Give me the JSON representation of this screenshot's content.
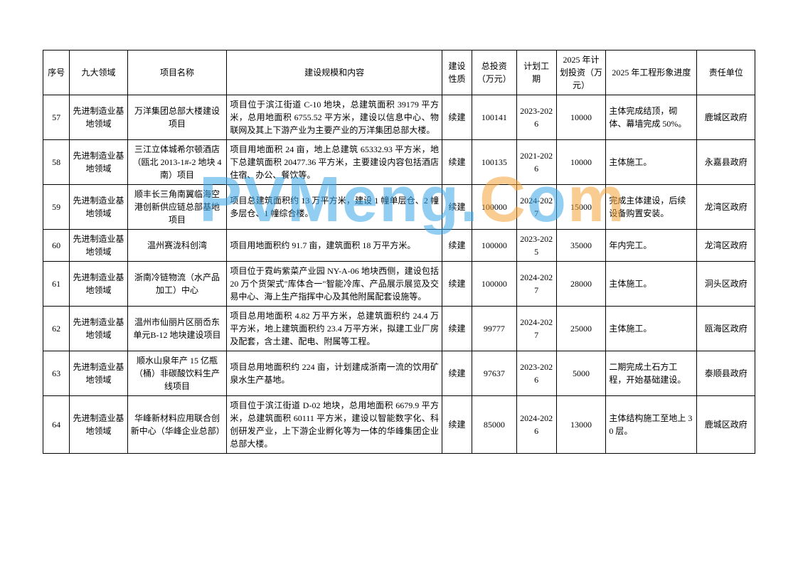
{
  "watermark": {
    "p": "PVMeng.",
    "c": "C",
    "o": "o",
    "m": "m"
  },
  "headers": {
    "seq": "序号",
    "domain": "九大领域",
    "name": "项目名称",
    "desc": "建设规模和内容",
    "prop": "建设性质",
    "inv": "总投资（万元）",
    "period": "计划工期",
    "plan": "2025 年计划投资（万元）",
    "prog": "2025 年工程形象进度",
    "resp": "责任单位"
  },
  "rows": [
    {
      "seq": "57",
      "domain": "先进制造业基地领域",
      "name": "万洋集团总部大楼建设项目",
      "desc": "项目位于滨江街道 C-10 地块，总建筑面积 39179 平方米，总用地面积 6755.52 平方米，建设以信息中心、物联网及其上下游产业为主要产业的万洋集团总部大楼。",
      "prop": "续建",
      "inv": "100141",
      "period": "2023-2026",
      "plan": "10000",
      "prog": "主体完成结顶，砌体、幕墙完成 50%。",
      "resp": "鹿城区政府"
    },
    {
      "seq": "58",
      "domain": "先进制造业基地领域",
      "name": "三江立体城希尔顿酒店（瓯北 2013-1#-2 地块 4 南）项目",
      "desc": "项目用地面积 24 亩，地上总建筑 65332.93 平方米，地下总建筑面积 20477.36 平方米，主要建设内容包括酒店住宿、办公、餐饮等。",
      "prop": "续建",
      "inv": "100135",
      "period": "2021-2026",
      "plan": "10000",
      "prog": "主体施工。",
      "resp": "永嘉县政府"
    },
    {
      "seq": "59",
      "domain": "先进制造业基地领域",
      "name": "顺丰长三角南翼临海空港创新供应链总部基地项目",
      "desc": "项目总建筑面积约 13 万平方米，建设 1 幢单层仓、2 幢多层仓、1 幢综合楼。",
      "prop": "续建",
      "inv": "100000",
      "period": "2024-2027",
      "plan": "15000",
      "prog": "完成主体建设，后续设备购置安装。",
      "resp": "龙湾区政府"
    },
    {
      "seq": "60",
      "domain": "先进制造业基地领域",
      "name": "温州赛泷科创湾",
      "desc": "项目用地面积约 91.7 亩，建筑面积 18 万平方米。",
      "prop": "续建",
      "inv": "100000",
      "period": "2023-2025",
      "plan": "35000",
      "prog": "年内完工。",
      "resp": "龙湾区政府"
    },
    {
      "seq": "61",
      "domain": "先进制造业基地领域",
      "name": "浙南冷链物流（水产品加工）中心",
      "desc": "项目位于霓屿紫菜产业园 NY-A-06 地块西侧，建设包括 20 万个货架式\"库体合一\"智能冷库、产品展示展览及交易中心、海上生产指挥中心及其他附属配套设施等。",
      "prop": "续建",
      "inv": "100000",
      "period": "2024-2027",
      "plan": "28000",
      "prog": "主体施工。",
      "resp": "洞头区政府"
    },
    {
      "seq": "62",
      "domain": "先进制造业基地领域",
      "name": "温州市仙丽片区丽岙东单元B-12 地块建设项目",
      "desc": "项目总用地面积 4.82 万平方米，总建筑面积约 24.4 万平方米，地上建筑面积约 23.4 万平方米，拟建工业厂房及配套，含土建、配电、附属等工程。",
      "prop": "续建",
      "inv": "99777",
      "period": "2024-2027",
      "plan": "25000",
      "prog": "主体施工。",
      "resp": "瓯海区政府"
    },
    {
      "seq": "63",
      "domain": "先进制造业基地领域",
      "name": "顺水山泉年产 15 亿瓶（桶）非碳酸饮料生产线项目",
      "desc": "项目总用地面积约 224 亩，计划建成浙南一流的饮用矿泉水生产基地。",
      "prop": "续建",
      "inv": "97637",
      "period": "2023-2026",
      "plan": "5000",
      "prog": "二期完成土石方工程，开始基础建设。",
      "resp": "泰顺县政府"
    },
    {
      "seq": "64",
      "domain": "先进制造业基地领域",
      "name": "华峰新材料应用联合创新中心（华峰企业总部）",
      "desc": "项目位于滨江街道 D-02 地块，总用地面积 6679.9 平方米，总建筑面积 60111 平方米，建设以智能数字化、科创研发产业，上下游企业孵化等为一体的华峰集团企业总部大楼。",
      "prop": "续建",
      "inv": "85000",
      "period": "2024-2026",
      "plan": "13000",
      "prog": "主体结构施工至地上 30 层。",
      "resp": "鹿城区政府"
    }
  ]
}
